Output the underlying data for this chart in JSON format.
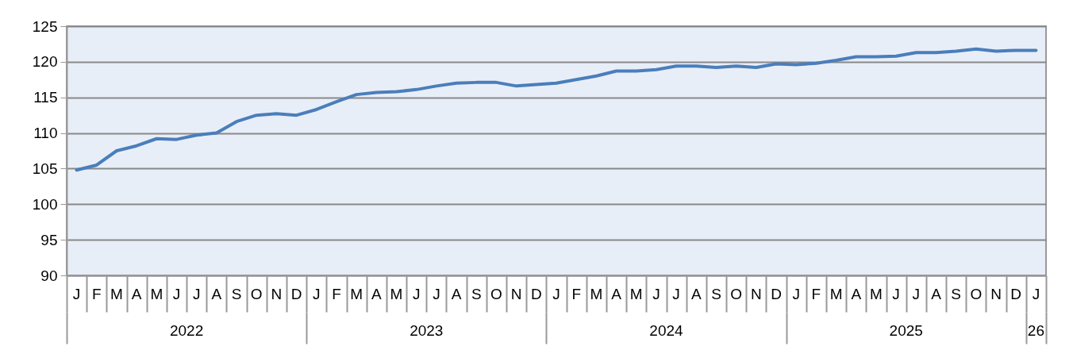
{
  "chart_data": {
    "type": "line",
    "categories": [
      "J",
      "F",
      "M",
      "A",
      "M",
      "J",
      "J",
      "A",
      "S",
      "O",
      "N",
      "D",
      "J",
      "F",
      "M",
      "A",
      "M",
      "J",
      "J",
      "A",
      "S",
      "O",
      "N",
      "D",
      "J",
      "F",
      "M",
      "A",
      "M",
      "J",
      "J",
      "A",
      "S",
      "O",
      "N",
      "D",
      "J",
      "F",
      "M",
      "A",
      "M",
      "J",
      "J",
      "A",
      "S",
      "O",
      "N",
      "D",
      "J"
    ],
    "series": [
      {
        "color": "#4a7ebb",
        "values": [
          104.8,
          105.5,
          107.5,
          108.2,
          109.2,
          109.1,
          109.7,
          110.0,
          111.6,
          112.5,
          112.7,
          112.5,
          113.3,
          114.4,
          115.4,
          115.7,
          115.8,
          116.1,
          116.6,
          117.0,
          117.1,
          117.1,
          116.6,
          116.8,
          117.0,
          117.5,
          118.0,
          118.7,
          118.7,
          118.9,
          119.4,
          119.4,
          119.2,
          119.4,
          119.2,
          119.7,
          119.6,
          119.8,
          120.2,
          120.7,
          120.7,
          120.8,
          121.3,
          121.3,
          121.5,
          121.8,
          121.5,
          121.6,
          121.6
        ]
      }
    ],
    "ylim": [
      90,
      125
    ],
    "yticks": [
      90,
      95,
      100,
      105,
      110,
      115,
      120,
      125
    ],
    "grid": "y",
    "legend": false,
    "marker": "none",
    "line_style": "solid",
    "annotations": [
      "2022",
      "2023",
      "2024",
      "2025",
      "26"
    ]
  }
}
